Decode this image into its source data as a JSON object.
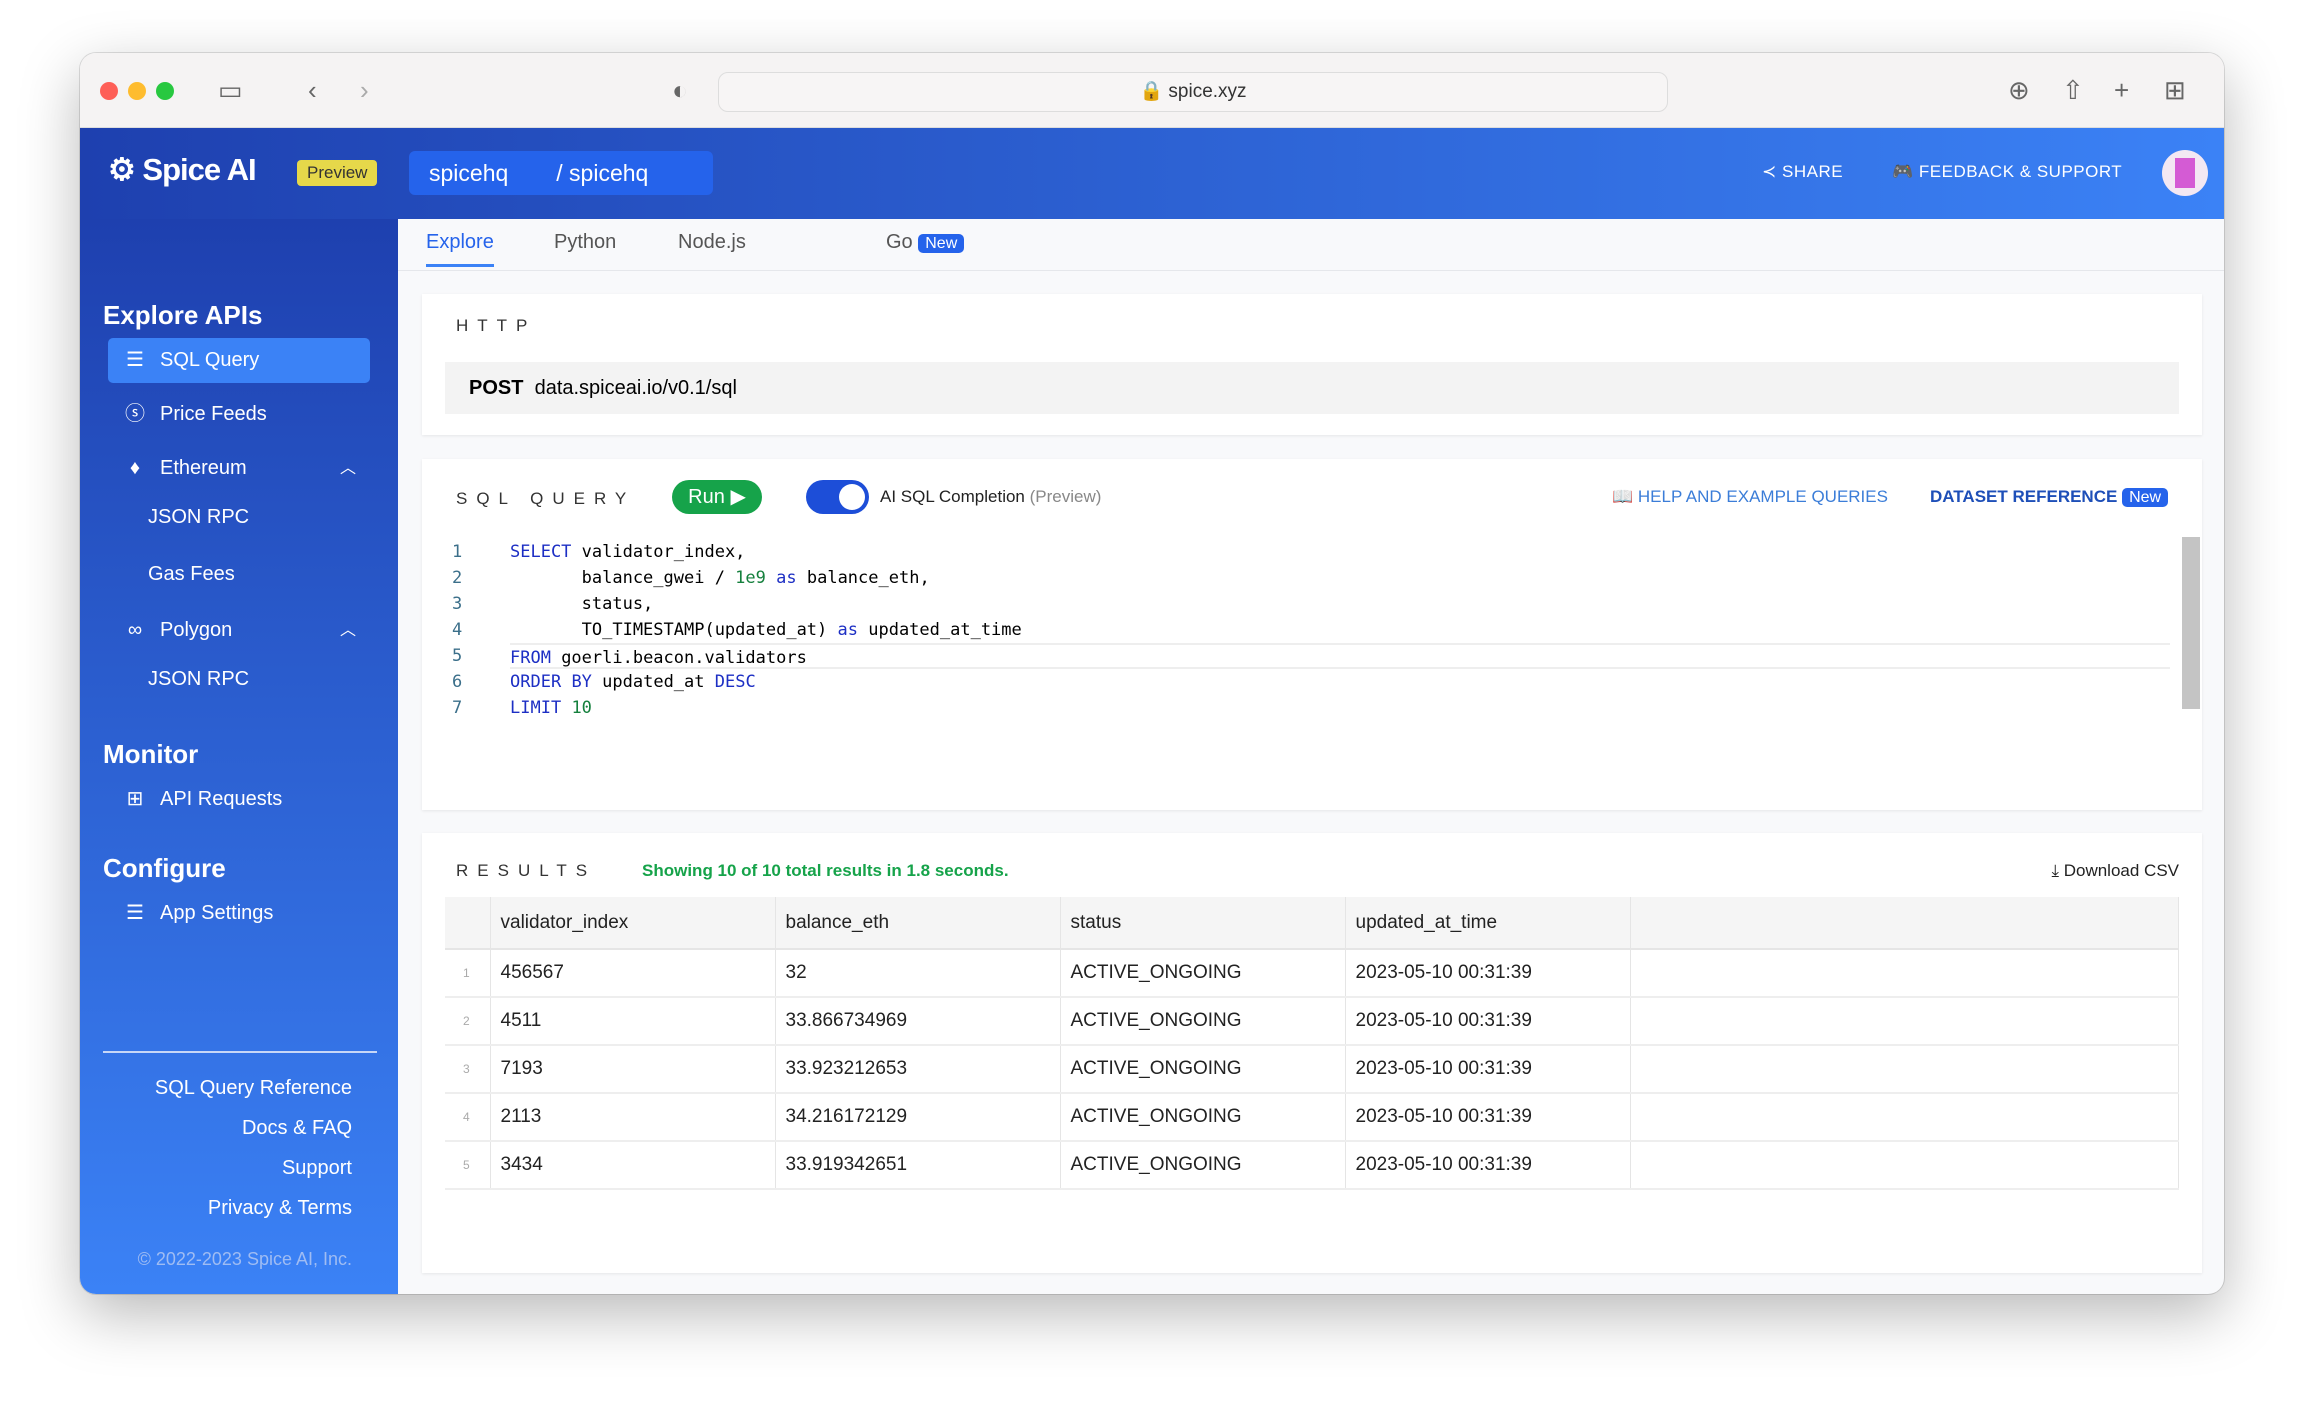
{
  "browser": {
    "url": "spice.xyz"
  },
  "header": {
    "logo": "Spice AI",
    "badge": "Preview",
    "org": "spicehq",
    "app": "/ spicehq",
    "share": "SHARE",
    "feedback": "FEEDBACK & SUPPORT"
  },
  "sidebar": {
    "sections": [
      {
        "title": "Explore APIs"
      },
      {
        "title": "Monitor"
      },
      {
        "title": "Configure"
      }
    ],
    "items": [
      {
        "label": "SQL Query",
        "icon": "database-icon"
      },
      {
        "label": "Price Feeds",
        "icon": "dollar-icon"
      },
      {
        "label": "Ethereum",
        "icon": "ethereum-icon"
      },
      {
        "label": "JSON RPC"
      },
      {
        "label": "Gas Fees"
      },
      {
        "label": "Polygon",
        "icon": "polygon-icon"
      },
      {
        "label": "JSON RPC"
      },
      {
        "label": "API Requests",
        "icon": "grid-icon"
      },
      {
        "label": "App Settings",
        "icon": "database-icon"
      }
    ],
    "footer": [
      "SQL Query Reference",
      "Docs & FAQ",
      "Support",
      "Privacy & Terms"
    ],
    "copyright": "© 2022-2023 Spice AI, Inc."
  },
  "tabs": [
    {
      "label": "Explore"
    },
    {
      "label": "Python"
    },
    {
      "label": "Node.js"
    },
    {
      "label": "Go"
    }
  ],
  "tab_badge": "New",
  "http": {
    "label": "HTTP",
    "method": "POST",
    "endpoint": "data.spiceai.io/v0.1/sql"
  },
  "sql": {
    "label": "SQL QUERY",
    "run": "Run",
    "ai_label": "AI SQL Completion",
    "ai_note": "(Preview)",
    "ai_enabled": true,
    "help": "HELP AND EXAMPLE QUERIES",
    "dataset": "DATASET REFERENCE",
    "dataset_badge": "New",
    "lines": [
      "SELECT validator_index,",
      "       balance_gwei / 1e9 as balance_eth,",
      "       status,",
      "       TO_TIMESTAMP(updated_at) as updated_at_time",
      "FROM goerli.beacon.validators",
      "ORDER BY updated_at DESC",
      "LIMIT 10"
    ]
  },
  "results": {
    "label": "RESULTS",
    "summary": "Showing 10 of 10 total results in 1.8 seconds.",
    "download": "Download CSV",
    "columns": [
      "validator_index",
      "balance_eth",
      "status",
      "updated_at_time"
    ],
    "rows": [
      [
        "1",
        "456567",
        "32",
        "ACTIVE_ONGOING",
        "2023-05-10 00:31:39"
      ],
      [
        "2",
        "4511",
        "33.866734969",
        "ACTIVE_ONGOING",
        "2023-05-10 00:31:39"
      ],
      [
        "3",
        "7193",
        "33.923212653",
        "ACTIVE_ONGOING",
        "2023-05-10 00:31:39"
      ],
      [
        "4",
        "2113",
        "34.216172129",
        "ACTIVE_ONGOING",
        "2023-05-10 00:31:39"
      ],
      [
        "5",
        "3434",
        "33.919342651",
        "ACTIVE_ONGOING",
        "2023-05-10 00:31:39"
      ]
    ]
  },
  "colors": {
    "brand": "#2563eb",
    "run": "#16a34a",
    "summary": "#16a34a"
  }
}
